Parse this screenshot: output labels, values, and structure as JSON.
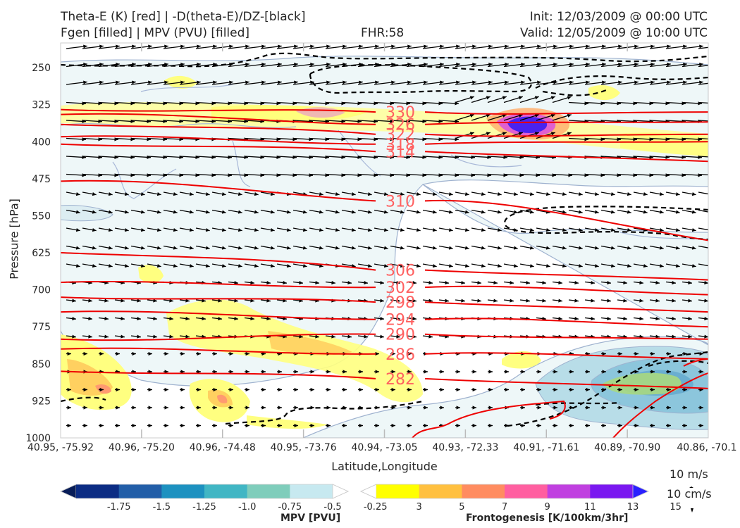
{
  "header": {
    "left_line1": "Theta-E (K) [red] | -D(theta-E)/DZ-[black]",
    "left_line2": "Fgen [filled] | MPV (PVU) [filled]",
    "center": "FHR:58",
    "right_line1": "Init: 12/03/2009 @ 00:00 UTC",
    "right_line2": "Valid: 12/05/2009 @ 10:00 UTC"
  },
  "chart_data": {
    "type": "cross-section",
    "xlabel": "Latitude,Longitude",
    "ylabel": "Pressure [hPa]",
    "x_ticks": [
      "40.95, -75.92",
      "40.96, -75.20",
      "40.96, -74.48",
      "40.95, -73.76",
      "40.94, -73.05",
      "40.93, -72.33",
      "40.91, -71.61",
      "40.89, -70.90",
      "40.86, -70.1"
    ],
    "y_ticks": [
      250,
      325,
      400,
      475,
      550,
      625,
      700,
      775,
      850,
      925,
      1000
    ],
    "ylim": [
      200,
      1000
    ],
    "theta_e_contours": [
      {
        "level": "330",
        "p_left": 335,
        "p_mid": 340,
        "p_right": 340
      },
      {
        "level": "326",
        "p_left": 345,
        "p_mid": 365,
        "p_right": 360
      },
      {
        "level": "322",
        "p_left": 365,
        "p_mid": 385,
        "p_right": 385
      },
      {
        "level": "318",
        "p_left": 390,
        "p_mid": 405,
        "p_right": 400
      },
      {
        "level": "314",
        "p_left": 405,
        "p_mid": 420,
        "p_right": 440
      },
      {
        "level": "310",
        "p_left": 480,
        "p_mid": 520,
        "p_right": 600
      },
      {
        "level": "306",
        "p_left": 625,
        "p_mid": 660,
        "p_right": 680
      },
      {
        "level": "302",
        "p_left": 685,
        "p_mid": 695,
        "p_right": 710
      },
      {
        "level": "298",
        "p_left": 715,
        "p_mid": 725,
        "p_right": 745
      },
      {
        "level": "294",
        "p_left": 745,
        "p_mid": 760,
        "p_right": 775
      },
      {
        "level": "290",
        "p_left": 800,
        "p_mid": 790,
        "p_right": 800
      },
      {
        "level": "286",
        "p_left": 820,
        "p_mid": 830,
        "p_right": 840
      },
      {
        "level": "282",
        "p_left": 865,
        "p_mid": 880,
        "p_right": 900
      }
    ],
    "mpv_colorbar": {
      "label": "MPV [PVU]",
      "ticks": [
        "-1.75",
        "-1.5",
        "-1.25",
        "-1.0",
        "-0.75",
        "-0.5",
        "-0.25"
      ],
      "colors": [
        "#081d58",
        "#0c2c84",
        "#225ea8",
        "#1d91c0",
        "#41b6c4",
        "#7fcdbb",
        "#c7e9f0",
        "#ffffff"
      ]
    },
    "fgen_colorbar": {
      "label": "Frontogenesis [K/100km/3hr]",
      "ticks": [
        "3",
        "5",
        "7",
        "9",
        "11",
        "13",
        "15"
      ],
      "colors": [
        "#ffffff",
        "#ffff00",
        "#ffc040",
        "#ff8c60",
        "#ff5fa0",
        "#c040e0",
        "#7a18f0",
        "#2a20ff"
      ]
    }
  },
  "reference_vectors": {
    "horizontal": "10 m/s",
    "vertical": "10 cm/s"
  }
}
